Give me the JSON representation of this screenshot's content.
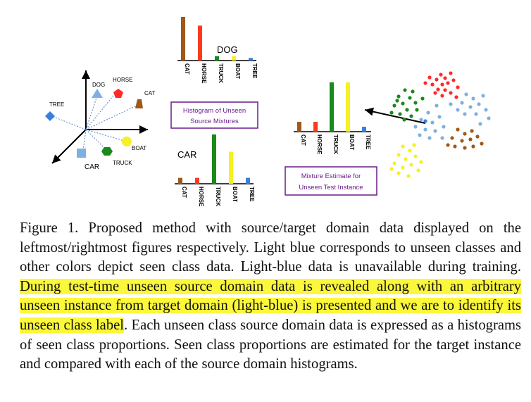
{
  "figure": {
    "left_plot": {
      "labels": {
        "dog": "DOG",
        "horse": "HORSE",
        "cat": "CAT",
        "tree": "TREE",
        "boat": "BOAT",
        "truck": "TRUCK",
        "car": "CAR"
      }
    },
    "histogram_top": {
      "title": "DOG",
      "categories": [
        "CAT",
        "HORSE",
        "TRUCK",
        "BOAT",
        "TREE"
      ],
      "values": [
        1.0,
        0.8,
        0.1,
        0.1,
        0.06
      ],
      "colors": [
        "#a0581a",
        "#ff3a1e",
        "#1a8a1a",
        "#f7f022",
        "#3a7fe0"
      ]
    },
    "histogram_bottom": {
      "title": "CAR",
      "categories": [
        "CAT",
        "HORSE",
        "TRUCK",
        "BOAT",
        "TREE"
      ],
      "values": [
        0.12,
        0.12,
        1.0,
        0.65,
        0.12
      ],
      "colors": [
        "#a0581a",
        "#ff3a1e",
        "#1a8a1a",
        "#f7f022",
        "#3a7fe0"
      ]
    },
    "histogram_right": {
      "categories": [
        "CAT",
        "HORSE",
        "TRUCK",
        "BOAT",
        "TREE"
      ],
      "values": [
        0.2,
        0.2,
        1.0,
        1.0,
        0.1
      ],
      "colors": [
        "#a0581a",
        "#ff3a1e",
        "#1a8a1a",
        "#f7f022",
        "#3a7fe0"
      ]
    },
    "box_source": {
      "line1": "Histogram of Unseen",
      "line2": "Source Mixtures"
    },
    "box_target": {
      "line1": "Mixture Estimate for",
      "line2": "Unseen Test Instance"
    },
    "box_color": "#6a1a8a",
    "accent_colors": {
      "blue": "#3a7fe0",
      "lightblue": "#7fb0e0",
      "red": "#ff2a2a",
      "green": "#1a8a1a",
      "brown": "#a0581a",
      "yellow": "#f7f022"
    }
  },
  "caption": {
    "part1": "Figure 1. Proposed method with source/target domain data displayed on the leftmost/rightmost figures respectively. Light blue corresponds to unseen classes and other colors depict seen class data. Light-blue data is unavailable during training. ",
    "highlight": "During test-time unseen source domain data is revealed along with an arbitrary unseen instance from target domain (light-blue) is presented and we are to identify its unseen class label",
    "part2": ". Each unseen class source domain data is expressed as a histograms of seen class proportions. Seen class proportions are estimated for the target instance and compared with each of the source domain histograms."
  }
}
